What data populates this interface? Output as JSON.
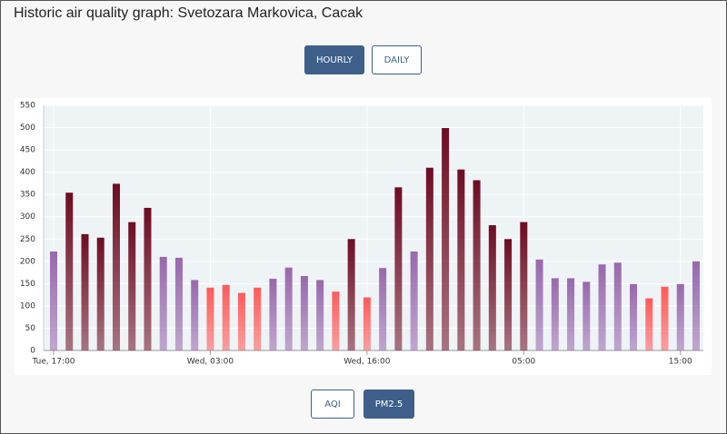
{
  "title": "Historic air quality graph: Svetozara Markovica, Cacak",
  "range_buttons": [
    "HOURLY",
    "DAILY"
  ],
  "range_active": 0,
  "metric_buttons": [
    "AQI",
    "PM2.5"
  ],
  "metric_active": 1,
  "chart_data": {
    "type": "bar",
    "categories": [
      "Tue, 17:00",
      null,
      null,
      null,
      null,
      null,
      null,
      null,
      null,
      null,
      "Wed, 03:00",
      null,
      null,
      null,
      null,
      null,
      null,
      null,
      null,
      null,
      "Wed, 16:00",
      null,
      null,
      null,
      null,
      null,
      null,
      null,
      null,
      null,
      "05:00",
      null,
      null,
      null,
      null,
      null,
      null,
      null,
      null,
      null,
      "15:00",
      null
    ],
    "values": [
      222,
      354,
      261,
      253,
      374,
      288,
      320,
      210,
      208,
      158,
      141,
      147,
      129,
      141,
      161,
      186,
      167,
      158,
      132,
      250,
      119,
      185,
      366,
      222,
      410,
      499,
      406,
      382,
      281,
      250,
      288,
      204,
      162,
      162,
      154,
      193,
      197,
      149,
      117,
      143,
      149,
      200
    ],
    "colors": [
      "#9868ad",
      "#6e0c22",
      "#6e0c22",
      "#6e0c22",
      "#6e0c22",
      "#6e0c22",
      "#6e0c22",
      "#9868ad",
      "#9868ad",
      "#9868ad",
      "#ff5a5a",
      "#ff5a5a",
      "#ff5a5a",
      "#ff5a5a",
      "#9868ad",
      "#9868ad",
      "#9868ad",
      "#9868ad",
      "#ff5a5a",
      "#6e0c22",
      "#ff5a5a",
      "#9868ad",
      "#6e0c22",
      "#9868ad",
      "#6e0c22",
      "#6e0c22",
      "#6e0c22",
      "#6e0c22",
      "#6e0c22",
      "#6e0c22",
      "#6e0c22",
      "#9868ad",
      "#9868ad",
      "#9868ad",
      "#9868ad",
      "#9868ad",
      "#9868ad",
      "#9868ad",
      "#ff5a5a",
      "#ff5a5a",
      "#9868ad",
      "#9868ad"
    ],
    "ylim": [
      0,
      550
    ],
    "yticks": [
      0,
      50,
      100,
      150,
      200,
      250,
      300,
      350,
      400,
      450,
      500,
      550
    ],
    "grid": true
  }
}
